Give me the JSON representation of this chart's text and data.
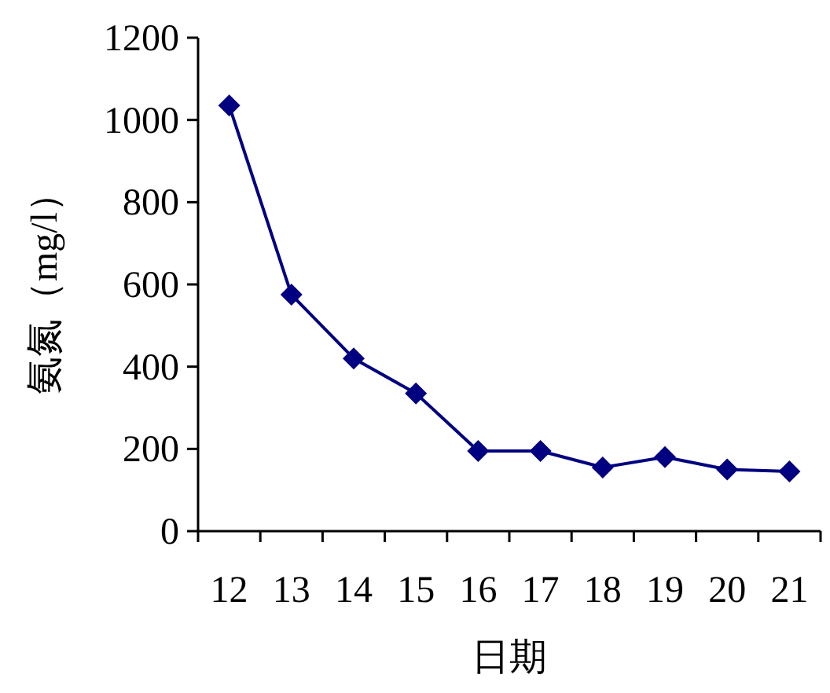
{
  "chart_data": {
    "type": "line",
    "xlabel": "日期",
    "ylabel": "氨氮（mg/l）",
    "categories": [
      "12",
      "13",
      "14",
      "15",
      "16",
      "17",
      "18",
      "19",
      "20",
      "21"
    ],
    "series": [
      {
        "color": "#000080",
        "values": [
          1035,
          575,
          420,
          335,
          195,
          195,
          155,
          180,
          150,
          145
        ]
      }
    ],
    "ylim": [
      0,
      1200
    ],
    "yticks": [
      0,
      200,
      400,
      600,
      800,
      1000,
      1200
    ],
    "marker": "diamond",
    "line_style": "solid",
    "grid": false
  }
}
